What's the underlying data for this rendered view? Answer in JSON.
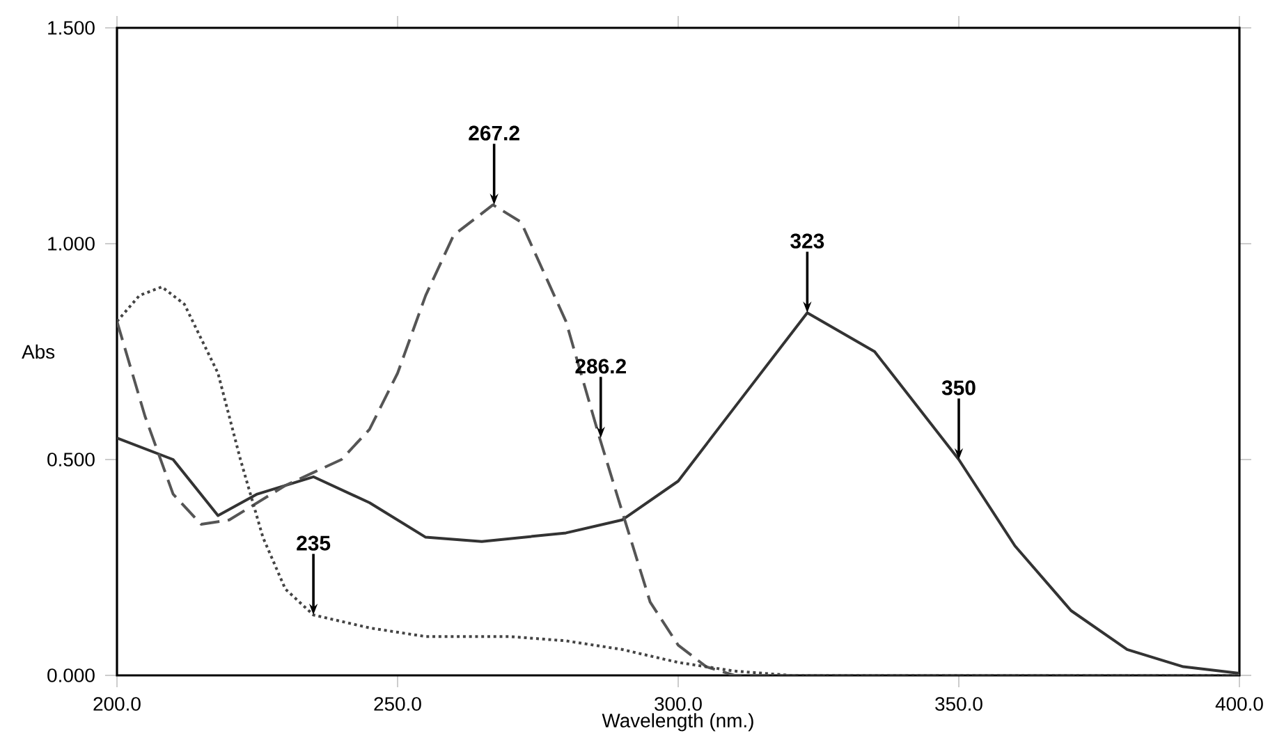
{
  "chart_data": {
    "type": "line",
    "xlabel": "Wavelength (nm.)",
    "ylabel": "Abs",
    "xlim": [
      200,
      400
    ],
    "ylim": [
      0,
      1.5
    ],
    "xticks": [
      {
        "value": 200,
        "label": "200.0"
      },
      {
        "value": 250,
        "label": "250.0"
      },
      {
        "value": 300,
        "label": "300.0"
      },
      {
        "value": 350,
        "label": "350.0"
      },
      {
        "value": 400,
        "label": "400.0"
      }
    ],
    "yticks": [
      {
        "value": 0,
        "label": "0.000"
      },
      {
        "value": 0.5,
        "label": "0.500"
      },
      {
        "value": 1,
        "label": "1.000"
      },
      {
        "value": 1.5,
        "label": "1.500"
      }
    ],
    "grid": false,
    "series": [
      {
        "color": "#333333",
        "line_style": "solid",
        "x": [
          200,
          210,
          218,
          225,
          235,
          245,
          255,
          265,
          280,
          290,
          300,
          310,
          323,
          335,
          350,
          360,
          370,
          380,
          390,
          400
        ],
        "values": [
          0.55,
          0.5,
          0.37,
          0.42,
          0.46,
          0.4,
          0.32,
          0.31,
          0.33,
          0.36,
          0.45,
          0.62,
          0.84,
          0.75,
          0.5,
          0.3,
          0.15,
          0.06,
          0.02,
          0.005
        ]
      },
      {
        "color": "#555555",
        "line_style": "dashed",
        "x": [
          200,
          205,
          210,
          215,
          220,
          230,
          235,
          240,
          245,
          250,
          255,
          260,
          267,
          272,
          280,
          286,
          290,
          295,
          300,
          305,
          310,
          400
        ],
        "values": [
          0.82,
          0.6,
          0.42,
          0.35,
          0.36,
          0.44,
          0.47,
          0.5,
          0.57,
          0.7,
          0.88,
          1.02,
          1.09,
          1.05,
          0.82,
          0.55,
          0.38,
          0.17,
          0.07,
          0.02,
          0.0,
          0.0
        ]
      },
      {
        "color": "#444444",
        "line_style": "dotted",
        "x": [
          200,
          204,
          208,
          212,
          218,
          222,
          226,
          230,
          235,
          245,
          255,
          270,
          280,
          290,
          300,
          310,
          320,
          400
        ],
        "values": [
          0.82,
          0.88,
          0.9,
          0.86,
          0.7,
          0.5,
          0.32,
          0.2,
          0.14,
          0.11,
          0.09,
          0.09,
          0.08,
          0.06,
          0.03,
          0.01,
          0.0,
          0.0
        ]
      }
    ],
    "annotations": [
      {
        "text": "267.2",
        "x": 267.2,
        "y": 1.09
      },
      {
        "text": "286.2",
        "x": 286.2,
        "y": 0.55
      },
      {
        "text": "323",
        "x": 323,
        "y": 0.84
      },
      {
        "text": "350",
        "x": 350,
        "y": 0.5
      },
      {
        "text": "235",
        "x": 235,
        "y": 0.14
      }
    ]
  }
}
